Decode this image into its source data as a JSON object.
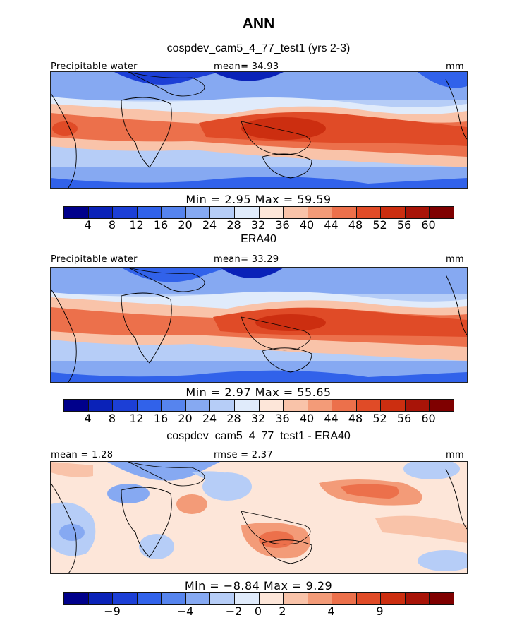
{
  "season": "ANN",
  "palette": {
    "colors": [
      "#00008b",
      "#0a22b8",
      "#1c3fd6",
      "#3162ea",
      "#5684ee",
      "#86a9f2",
      "#b6cdf7",
      "#e0ebfb",
      "#fde6d9",
      "#f9c3a9",
      "#f39b78",
      "#ec704b",
      "#e04b27",
      "#cc2e10",
      "#a81408",
      "#7f0000"
    ],
    "panels": [
      "#f0f4fb",
      "#fbe8df"
    ]
  },
  "panels": [
    {
      "title": "cospdev_cam5_4_77_test1 (yrs 2-3)",
      "left_label": "Precipitable water",
      "center_label": "mean=  34.93",
      "units": "mm",
      "stats": "Min =    2.95  Max =   59.59",
      "ticks": [
        "4",
        "8",
        "12",
        "16",
        "20",
        "24",
        "28",
        "32",
        "36",
        "40",
        "44",
        "48",
        "52",
        "56",
        "60"
      ]
    },
    {
      "title": "ERA40",
      "left_label": "Precipitable water",
      "center_label": "mean=  33.29",
      "units": "mm",
      "stats": "Min =    2.97  Max =   55.65",
      "ticks": [
        "4",
        "8",
        "12",
        "16",
        "20",
        "24",
        "28",
        "32",
        "36",
        "40",
        "44",
        "48",
        "52",
        "56",
        "60"
      ]
    },
    {
      "title": "cospdev_cam5_4_77_test1 - ERA40",
      "left_label": "mean =    1.28",
      "center_label": "rmse =    2.37",
      "units": "mm",
      "stats": "Min =   −8.84  Max =    9.29",
      "ticks": [
        "−9",
        "−4",
        "−2",
        "0",
        "2",
        "4",
        "9"
      ]
    }
  ]
}
